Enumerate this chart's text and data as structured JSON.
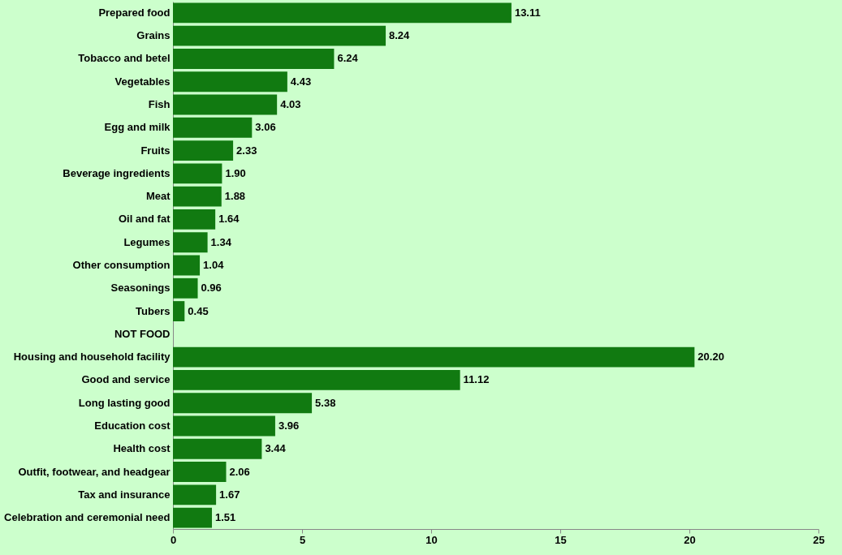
{
  "chart_data": {
    "type": "bar",
    "orientation": "horizontal",
    "categories": [
      "Prepared food",
      "Grains",
      "Tobacco and betel",
      "Vegetables",
      "Fish",
      "Egg and milk",
      "Fruits",
      "Beverage ingredients",
      "Meat",
      "Oil and fat",
      "Legumes",
      "Other consumption",
      "Seasonings",
      "Tubers",
      "NOT FOOD",
      "Housing and household facility",
      "Good and service",
      "Long lasting good",
      "Education cost",
      "Health cost",
      "Outfit, footwear, and headgear",
      "Tax and insurance",
      "Celebration and ceremonial need"
    ],
    "values": [
      13.11,
      8.24,
      6.24,
      4.43,
      4.03,
      3.06,
      2.33,
      1.9,
      1.88,
      1.64,
      1.34,
      1.04,
      0.96,
      0.45,
      null,
      20.2,
      11.12,
      5.38,
      3.96,
      3.44,
      2.06,
      1.67,
      1.51
    ],
    "value_labels": [
      "13.11",
      "8.24",
      "6.24",
      "4.43",
      "4.03",
      "3.06",
      "2.33",
      "1.90",
      "1.88",
      "1.64",
      "1.34",
      "1.04",
      "0.96",
      "0.45",
      null,
      "20.20",
      "11.12",
      "5.38",
      "3.96",
      "3.44",
      "2.06",
      "1.67",
      "1.51"
    ],
    "color": "#117a11",
    "xlim": [
      0,
      25
    ],
    "xticks": [
      0,
      5,
      10,
      15,
      20,
      25
    ],
    "grid": false
  }
}
